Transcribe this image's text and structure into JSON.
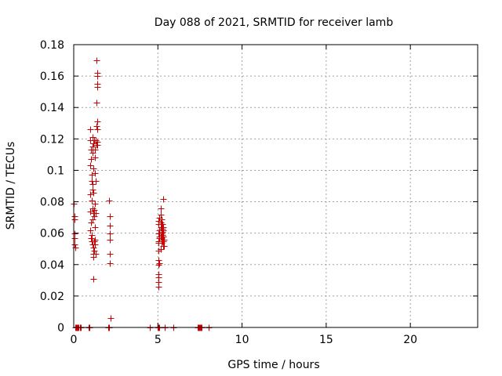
{
  "chart_data": {
    "type": "scatter",
    "title": "Day 088 of 2021, SRMTID for receiver lamb",
    "xlabel": "GPS time / hours",
    "ylabel": "SRMTID / TECUs",
    "xlim": [
      0,
      24
    ],
    "ylim": [
      0,
      0.18
    ],
    "xticks": [
      0,
      5,
      10,
      15,
      20
    ],
    "yticks": [
      0,
      0.02,
      0.04,
      0.06,
      0.08,
      0.1,
      0.12,
      0.14,
      0.16,
      0.18
    ],
    "xtick_labels": [
      "0",
      "5",
      "10",
      "15",
      "20"
    ],
    "ytick_labels": [
      "0",
      "0.02",
      "0.04",
      "0.06",
      "0.08",
      "0.1",
      "0.12",
      "0.14",
      "0.16",
      "0.18"
    ],
    "grid": true,
    "marker": "plus",
    "color": "#cc0000",
    "series": [
      {
        "points": [
          [
            0.02,
            0.079
          ],
          [
            0.03,
            0.071
          ],
          [
            0.04,
            0.069
          ],
          [
            0.05,
            0.06
          ],
          [
            0.05,
            0.057
          ],
          [
            0.06,
            0.053
          ],
          [
            0.07,
            0.051
          ],
          [
            0.1,
            0
          ],
          [
            0.15,
            0
          ],
          [
            0.2,
            0
          ],
          [
            0.25,
            0
          ],
          [
            0.3,
            0
          ],
          [
            0.35,
            0
          ],
          [
            0.4,
            0
          ],
          [
            0.9,
            0
          ],
          [
            0.95,
            0
          ],
          [
            1.0,
            0.126
          ],
          [
            1.0,
            0.119
          ],
          [
            1.02,
            0.113
          ],
          [
            1.03,
            0.107
          ],
          [
            1.0,
            0.103
          ],
          [
            1.05,
            0.097
          ],
          [
            1.05,
            0.093
          ],
          [
            1.0,
            0.085
          ],
          [
            1.05,
            0.081
          ],
          [
            1.0,
            0.074
          ],
          [
            1.03,
            0.067
          ],
          [
            1.0,
            0.062
          ],
          [
            1.05,
            0.059
          ],
          [
            1.02,
            0.057
          ],
          [
            1.05,
            0.055
          ],
          [
            1.1,
            0.053
          ],
          [
            1.1,
            0.121
          ],
          [
            1.1,
            0.115
          ],
          [
            1.1,
            0.111
          ],
          [
            1.1,
            0.091
          ],
          [
            1.1,
            0.088
          ],
          [
            1.1,
            0.076
          ],
          [
            1.1,
            0.069
          ],
          [
            1.15,
            0.117
          ],
          [
            1.15,
            0.101
          ],
          [
            1.15,
            0.086
          ],
          [
            1.15,
            0.073
          ],
          [
            1.15,
            0.051
          ],
          [
            1.15,
            0.047
          ],
          [
            1.15,
            0.045
          ],
          [
            1.2,
            0.119
          ],
          [
            1.2,
            0.075
          ],
          [
            1.2,
            0.071
          ],
          [
            1.2,
            0.055
          ],
          [
            1.2,
            0.049
          ],
          [
            1.15,
            0.031
          ],
          [
            1.25,
            0.113
          ],
          [
            1.25,
            0.108
          ],
          [
            1.25,
            0.098
          ],
          [
            1.25,
            0.079
          ],
          [
            1.25,
            0.064
          ],
          [
            1.25,
            0.056
          ],
          [
            1.25,
            0.053
          ],
          [
            1.3,
            0.119
          ],
          [
            1.3,
            0.093
          ],
          [
            1.3,
            0.073
          ],
          [
            1.3,
            0.047
          ],
          [
            1.35,
            0.17
          ],
          [
            1.35,
            0.143
          ],
          [
            1.35,
            0.128
          ],
          [
            1.35,
            0.116
          ],
          [
            1.4,
            0.162
          ],
          [
            1.4,
            0.16
          ],
          [
            1.4,
            0.155
          ],
          [
            1.4,
            0.153
          ],
          [
            1.4,
            0.131
          ],
          [
            1.4,
            0.126
          ],
          [
            1.4,
            0.118
          ],
          [
            1.4,
            0.116
          ],
          [
            2.05,
            0
          ],
          [
            2.1,
            0
          ],
          [
            2.1,
            0.081
          ],
          [
            2.15,
            0.071
          ],
          [
            2.15,
            0.065
          ],
          [
            2.15,
            0.06
          ],
          [
            2.15,
            0.056
          ],
          [
            2.15,
            0.047
          ],
          [
            2.15,
            0.041
          ],
          [
            2.2,
            0.006
          ],
          [
            4.5,
            0
          ],
          [
            5.0,
            0
          ],
          [
            5.05,
            0
          ],
          [
            5.1,
            0
          ],
          [
            5.4,
            0
          ],
          [
            5.9,
            0
          ],
          [
            5.05,
            0.068
          ],
          [
            5.05,
            0.066
          ],
          [
            5.05,
            0.06
          ],
          [
            5.05,
            0.055
          ],
          [
            5.05,
            0.054
          ],
          [
            5.05,
            0.049
          ],
          [
            5.05,
            0.043
          ],
          [
            5.05,
            0.04
          ],
          [
            5.05,
            0.034
          ],
          [
            5.05,
            0.032
          ],
          [
            5.05,
            0.029
          ],
          [
            5.05,
            0.026
          ],
          [
            5.1,
            0.07
          ],
          [
            5.1,
            0.062
          ],
          [
            5.1,
            0.058
          ],
          [
            5.1,
            0.057
          ],
          [
            5.1,
            0.041
          ],
          [
            5.15,
            0.076
          ],
          [
            5.15,
            0.072
          ],
          [
            5.15,
            0.067
          ],
          [
            5.15,
            0.064
          ],
          [
            5.15,
            0.058
          ],
          [
            5.15,
            0.05
          ],
          [
            5.2,
            0.069
          ],
          [
            5.2,
            0.066
          ],
          [
            5.2,
            0.063
          ],
          [
            5.2,
            0.06
          ],
          [
            5.2,
            0.057
          ],
          [
            5.2,
            0.055
          ],
          [
            5.2,
            0.054
          ],
          [
            5.25,
            0.066
          ],
          [
            5.25,
            0.063
          ],
          [
            5.25,
            0.061
          ],
          [
            5.25,
            0.059
          ],
          [
            5.25,
            0.056
          ],
          [
            5.25,
            0.055
          ],
          [
            5.3,
            0.082
          ],
          [
            5.3,
            0.064
          ],
          [
            5.3,
            0.062
          ],
          [
            5.3,
            0.058
          ],
          [
            5.3,
            0.055
          ],
          [
            5.3,
            0.052
          ],
          [
            5.35,
            0.056
          ],
          [
            5.35,
            0.052
          ],
          [
            7.35,
            0
          ],
          [
            7.4,
            0
          ],
          [
            7.45,
            0
          ],
          [
            7.5,
            0
          ],
          [
            7.55,
            0
          ],
          [
            7.6,
            0
          ],
          [
            8.0,
            0
          ]
        ]
      }
    ]
  }
}
